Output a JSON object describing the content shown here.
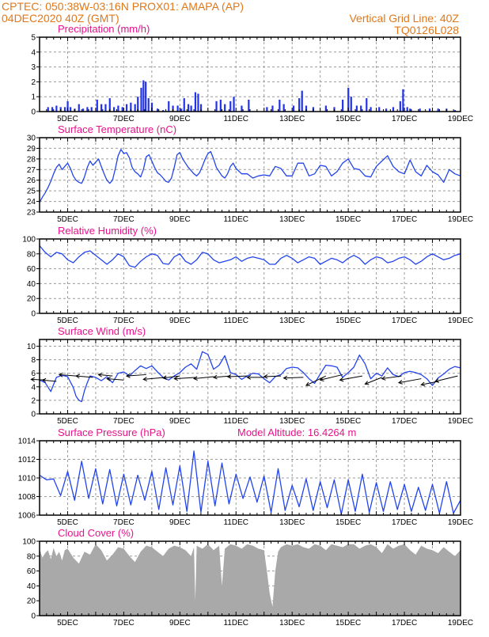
{
  "header": {
    "line1": "CPTEC:   050:38W-03:16N   PROX01: AMAPA (AP)",
    "line2": "04DEC2020 40Z (GMT)",
    "grid_note": "Vertical Grid Line: 40Z",
    "model_code": "TQ0126L028"
  },
  "colors": {
    "header_text": "#e0781a",
    "panel_title": "#e8128c",
    "series_line": "#2244ee",
    "bars": "#2233ee",
    "cloud_fill": "#a9a9a9",
    "grid": "#9a9a9a",
    "frame": "#000000",
    "wind_arrow": "#000000"
  },
  "x_axis": {
    "day_start": 4,
    "day_end": 19,
    "tick_days": [
      5,
      7,
      9,
      11,
      13,
      15,
      17,
      19
    ],
    "tick_labels": [
      "5DEC",
      "7DEC",
      "9DEC",
      "11DEC",
      "13DEC",
      "15DEC",
      "17DEC",
      "19DEC"
    ]
  },
  "chart_data": [
    {
      "id": "precip",
      "type": "bar",
      "title": "Precipitation (mm/h)",
      "ylim": [
        0,
        5
      ],
      "yticks": [
        0,
        1,
        2,
        3,
        4,
        5
      ],
      "grid": true,
      "events": [
        [
          4.3,
          0.3
        ],
        [
          4.45,
          0.3
        ],
        [
          4.6,
          0.4
        ],
        [
          4.75,
          0.3
        ],
        [
          4.9,
          0.3
        ],
        [
          5.0,
          0.7
        ],
        [
          5.1,
          0.3
        ],
        [
          5.25,
          0.2
        ],
        [
          5.4,
          0.5
        ],
        [
          5.55,
          0.2
        ],
        [
          5.7,
          0.3
        ],
        [
          5.85,
          0.3
        ],
        [
          6.05,
          0.8
        ],
        [
          6.2,
          0.5
        ],
        [
          6.35,
          0.5
        ],
        [
          6.5,
          0.9
        ],
        [
          6.65,
          0.3
        ],
        [
          6.8,
          0.4
        ],
        [
          6.95,
          0.3
        ],
        [
          7.1,
          0.5
        ],
        [
          7.25,
          0.6
        ],
        [
          7.4,
          0.5
        ],
        [
          7.5,
          1.0
        ],
        [
          7.62,
          1.6
        ],
        [
          7.7,
          2.1
        ],
        [
          7.78,
          2.0
        ],
        [
          7.88,
          0.9
        ],
        [
          8.0,
          0.6
        ],
        [
          8.2,
          0.2
        ],
        [
          8.4,
          0.1
        ],
        [
          8.6,
          0.7
        ],
        [
          8.75,
          0.4
        ],
        [
          8.92,
          0.4
        ],
        [
          9.05,
          0.2
        ],
        [
          9.15,
          0.9
        ],
        [
          9.3,
          0.5
        ],
        [
          9.4,
          0.4
        ],
        [
          9.55,
          1.3
        ],
        [
          9.65,
          1.2
        ],
        [
          9.75,
          0.5
        ],
        [
          10.3,
          0.7
        ],
        [
          10.45,
          0.8
        ],
        [
          10.6,
          0.5
        ],
        [
          10.8,
          0.7
        ],
        [
          10.92,
          1.0
        ],
        [
          11.2,
          0.4
        ],
        [
          11.45,
          0.8
        ],
        [
          12.1,
          0.3
        ],
        [
          12.3,
          0.4
        ],
        [
          12.55,
          0.8
        ],
        [
          12.7,
          0.5
        ],
        [
          13.05,
          0.4
        ],
        [
          13.25,
          0.9
        ],
        [
          13.35,
          1.4
        ],
        [
          13.5,
          0.4
        ],
        [
          13.75,
          0.3
        ],
        [
          14.2,
          0.4
        ],
        [
          14.5,
          0.3
        ],
        [
          14.8,
          0.8
        ],
        [
          15.0,
          1.6
        ],
        [
          15.1,
          1.0
        ],
        [
          15.3,
          0.4
        ],
        [
          15.45,
          0.4
        ],
        [
          15.65,
          0.9
        ],
        [
          15.8,
          0.3
        ],
        [
          16.1,
          0.3
        ],
        [
          16.35,
          0.2
        ],
        [
          16.6,
          0.3
        ],
        [
          16.85,
          0.7
        ],
        [
          16.95,
          1.5
        ],
        [
          17.1,
          0.3
        ],
        [
          17.2,
          0.2
        ],
        [
          17.55,
          0.2
        ],
        [
          17.9,
          0.2
        ],
        [
          18.2,
          0.2
        ],
        [
          18.5,
          0.2
        ],
        [
          18.8,
          0.1
        ]
      ]
    },
    {
      "id": "temp",
      "type": "line",
      "title": "Surface Temperature (nC)",
      "ylim": [
        23,
        30
      ],
      "yticks": [
        23,
        24,
        25,
        26,
        27,
        28,
        29,
        30
      ],
      "grid": true,
      "x": [
        4.0,
        4.1,
        4.2,
        4.3,
        4.4,
        4.5,
        4.6,
        4.7,
        4.8,
        4.9,
        5.0,
        5.1,
        5.2,
        5.3,
        5.4,
        5.5,
        5.6,
        5.7,
        5.8,
        5.9,
        6.0,
        6.1,
        6.2,
        6.3,
        6.4,
        6.5,
        6.6,
        6.7,
        6.8,
        6.9,
        7.0,
        7.1,
        7.2,
        7.3,
        7.4,
        7.5,
        7.6,
        7.7,
        7.8,
        7.9,
        8.0,
        8.1,
        8.2,
        8.3,
        8.4,
        8.5,
        8.6,
        8.7,
        8.8,
        8.9,
        9.0,
        9.1,
        9.2,
        9.3,
        9.4,
        9.5,
        9.6,
        9.7,
        9.8,
        9.9,
        10.0,
        10.1,
        10.2,
        10.3,
        10.4,
        10.5,
        10.6,
        10.7,
        10.8,
        10.9,
        11.0,
        11.2,
        11.4,
        11.6,
        11.8,
        12.0,
        12.2,
        12.4,
        12.6,
        12.8,
        13.0,
        13.2,
        13.4,
        13.6,
        13.8,
        14.0,
        14.2,
        14.4,
        14.6,
        14.8,
        15.0,
        15.2,
        15.4,
        15.6,
        15.8,
        16.0,
        16.2,
        16.4,
        16.6,
        16.8,
        17.0,
        17.2,
        17.4,
        17.6,
        17.8,
        18.0,
        18.2,
        18.4,
        18.6,
        18.8,
        19.0
      ],
      "values": [
        23.9,
        24.4,
        24.8,
        25.3,
        25.9,
        26.6,
        27.2,
        27.5,
        27.0,
        27.3,
        27.6,
        27.1,
        26.4,
        26.0,
        25.8,
        25.7,
        26.3,
        27.2,
        27.8,
        27.4,
        27.7,
        28.0,
        27.3,
        26.6,
        26.0,
        25.7,
        26.0,
        27.1,
        28.3,
        28.9,
        28.5,
        28.6,
        28.1,
        27.2,
        26.8,
        26.6,
        26.3,
        27.0,
        28.2,
        28.4,
        27.8,
        27.2,
        26.7,
        26.5,
        26.2,
        25.9,
        25.8,
        26.2,
        27.2,
        28.4,
        28.6,
        28.0,
        27.6,
        27.2,
        26.9,
        26.6,
        26.4,
        26.7,
        27.3,
        28.0,
        28.5,
        28.7,
        28.0,
        27.2,
        26.8,
        26.4,
        26.2,
        26.6,
        27.3,
        27.6,
        27.1,
        26.6,
        26.6,
        26.2,
        26.4,
        26.5,
        26.4,
        27.3,
        27.1,
        26.4,
        26.4,
        27.6,
        27.6,
        26.4,
        26.6,
        27.4,
        27.3,
        26.4,
        26.8,
        27.6,
        28.0,
        27.1,
        27.0,
        26.4,
        26.3,
        27.3,
        27.8,
        28.3,
        27.3,
        26.8,
        26.6,
        27.9,
        26.8,
        26.4,
        27.4,
        26.8,
        26.5,
        25.8,
        27.0,
        26.6,
        26.4
      ]
    },
    {
      "id": "rh",
      "type": "line",
      "title": "Relative Humidity (%)",
      "ylim": [
        0,
        100
      ],
      "yticks": [
        0,
        20,
        40,
        60,
        80,
        100
      ],
      "grid": true,
      "x": [
        4.0,
        4.2,
        4.4,
        4.6,
        4.8,
        5.0,
        5.2,
        5.4,
        5.6,
        5.8,
        6.0,
        6.2,
        6.4,
        6.6,
        6.8,
        7.0,
        7.2,
        7.4,
        7.6,
        7.8,
        8.0,
        8.2,
        8.4,
        8.6,
        8.8,
        9.0,
        9.2,
        9.4,
        9.6,
        9.8,
        10.0,
        10.2,
        10.4,
        10.6,
        10.8,
        11.0,
        11.2,
        11.4,
        11.6,
        11.8,
        12.0,
        12.2,
        12.4,
        12.6,
        12.8,
        13.0,
        13.2,
        13.4,
        13.6,
        13.8,
        14.0,
        14.2,
        14.4,
        14.6,
        14.8,
        15.0,
        15.2,
        15.4,
        15.6,
        15.8,
        16.0,
        16.2,
        16.4,
        16.6,
        16.8,
        17.0,
        17.2,
        17.4,
        17.6,
        17.8,
        18.0,
        18.2,
        18.4,
        18.6,
        18.8,
        19.0
      ],
      "values": [
        91,
        82,
        76,
        82,
        80,
        72,
        68,
        76,
        82,
        84,
        78,
        72,
        66,
        72,
        80,
        76,
        64,
        62,
        70,
        76,
        80,
        78,
        67,
        66,
        76,
        80,
        70,
        66,
        72,
        82,
        80,
        72,
        68,
        70,
        72,
        76,
        70,
        74,
        76,
        74,
        72,
        66,
        66,
        74,
        78,
        74,
        68,
        72,
        76,
        74,
        66,
        70,
        74,
        72,
        68,
        74,
        78,
        74,
        66,
        72,
        76,
        74,
        68,
        70,
        74,
        76,
        72,
        66,
        70,
        76,
        80,
        76,
        72,
        74,
        78,
        80
      ]
    },
    {
      "id": "wind",
      "type": "line",
      "title": "Surface Wind (m/s)",
      "ylim": [
        0,
        11
      ],
      "yticks": [
        0,
        2,
        4,
        6,
        8,
        10
      ],
      "grid": true,
      "x": [
        4.0,
        4.2,
        4.4,
        4.6,
        4.8,
        5.0,
        5.2,
        5.3,
        5.4,
        5.5,
        5.6,
        5.7,
        5.8,
        6.0,
        6.2,
        6.4,
        6.6,
        6.8,
        7.0,
        7.2,
        7.4,
        7.6,
        7.8,
        8.0,
        8.2,
        8.4,
        8.6,
        8.8,
        9.0,
        9.2,
        9.4,
        9.6,
        9.8,
        10.0,
        10.2,
        10.4,
        10.6,
        10.8,
        11.0,
        11.2,
        11.4,
        11.6,
        11.8,
        12.0,
        12.2,
        12.4,
        12.6,
        12.8,
        13.0,
        13.2,
        13.4,
        13.6,
        13.8,
        14.0,
        14.2,
        14.4,
        14.6,
        14.8,
        15.0,
        15.2,
        15.4,
        15.6,
        15.8,
        16.0,
        16.2,
        16.4,
        16.6,
        16.8,
        17.0,
        17.2,
        17.4,
        17.6,
        17.8,
        18.0,
        18.2,
        18.4,
        18.6,
        18.8,
        19.0
      ],
      "values": [
        5.0,
        4.6,
        3.3,
        5.4,
        5.7,
        5.5,
        3.9,
        2.6,
        2.0,
        1.8,
        3.4,
        4.6,
        5.6,
        5.4,
        4.9,
        5.5,
        4.6,
        6.0,
        6.2,
        5.6,
        6.4,
        7.1,
        6.7,
        7.1,
        6.2,
        5.4,
        5.0,
        5.6,
        6.1,
        6.9,
        7.4,
        6.6,
        9.2,
        8.8,
        6.6,
        7.2,
        8.6,
        6.1,
        5.8,
        5.1,
        5.6,
        6.0,
        5.9,
        5.2,
        4.6,
        5.5,
        5.8,
        6.7,
        6.9,
        6.8,
        6.1,
        5.2,
        4.5,
        5.9,
        7.2,
        7.1,
        6.9,
        5.4,
        6.1,
        6.9,
        8.7,
        7.4,
        5.2,
        6.0,
        5.6,
        6.8,
        5.8,
        5.5,
        6.1,
        6.3,
        6.1,
        5.8,
        5.2,
        4.2,
        5.3,
        5.9,
        6.6,
        7.0,
        6.8
      ],
      "arrows": [
        [
          4.2,
          5.0,
          -0.5,
          0.1
        ],
        [
          4.6,
          4.8,
          -0.5,
          0.2
        ],
        [
          5.3,
          5.6,
          -0.6,
          0.2
        ],
        [
          5.9,
          5.4,
          -0.6,
          0.2
        ],
        [
          6.6,
          5.6,
          -0.5,
          0.2
        ],
        [
          7.0,
          5.0,
          -0.6,
          0.2
        ],
        [
          7.8,
          5.8,
          -0.7,
          -0.2
        ],
        [
          8.5,
          5.4,
          -0.8,
          -0.3
        ],
        [
          9.0,
          5.6,
          -0.6,
          -0.3
        ],
        [
          9.6,
          5.4,
          -0.8,
          -0.2
        ],
        [
          10.2,
          5.5,
          -0.7,
          -0.3
        ],
        [
          10.8,
          5.6,
          -0.6,
          -0.2
        ],
        [
          11.4,
          5.6,
          -0.7,
          -0.1
        ],
        [
          12.0,
          5.4,
          -0.6,
          0.0
        ],
        [
          12.6,
          5.6,
          -0.6,
          -0.1
        ],
        [
          13.4,
          5.4,
          -0.7,
          -0.1
        ],
        [
          14.2,
          5.6,
          -0.7,
          -1.4
        ],
        [
          14.8,
          5.8,
          -0.8,
          -0.8
        ],
        [
          15.5,
          5.6,
          -0.8,
          -0.6
        ],
        [
          16.2,
          5.4,
          -0.6,
          -1.0
        ],
        [
          16.9,
          5.6,
          -0.7,
          -0.4
        ],
        [
          17.6,
          5.2,
          -0.8,
          -0.6
        ],
        [
          18.2,
          4.8,
          -0.6,
          -0.5
        ],
        [
          18.9,
          5.6,
          -0.8,
          -0.8
        ]
      ]
    },
    {
      "id": "pressure",
      "type": "line",
      "title": "Surface Pressure (hPa)",
      "annotation": "Model Altitude: 16.4264 m",
      "ylim": [
        1006,
        1014
      ],
      "yticks": [
        1006,
        1008,
        1010,
        1012,
        1014
      ],
      "grid": true,
      "x": [
        4.0,
        4.25,
        4.5,
        4.75,
        5.0,
        5.25,
        5.5,
        5.75,
        6.0,
        6.25,
        6.5,
        6.75,
        7.0,
        7.25,
        7.5,
        7.75,
        8.0,
        8.25,
        8.5,
        8.75,
        9.0,
        9.25,
        9.5,
        9.75,
        10.0,
        10.25,
        10.5,
        10.75,
        11.0,
        11.25,
        11.5,
        11.75,
        12.0,
        12.25,
        12.5,
        12.75,
        13.0,
        13.25,
        13.5,
        13.75,
        14.0,
        14.25,
        14.5,
        14.75,
        15.0,
        15.25,
        15.5,
        15.75,
        16.0,
        16.25,
        16.5,
        16.75,
        17.0,
        17.25,
        17.5,
        17.75,
        18.0,
        18.25,
        18.5,
        18.75,
        19.0
      ],
      "values": [
        1010.3,
        1009.8,
        1009.9,
        1008.1,
        1010.7,
        1007.6,
        1011.8,
        1007.8,
        1011.0,
        1007.2,
        1010.9,
        1007.0,
        1010.4,
        1007.1,
        1010.3,
        1007.6,
        1010.7,
        1006.6,
        1011.1,
        1007.1,
        1011.3,
        1006.4,
        1012.9,
        1006.3,
        1011.8,
        1007.0,
        1011.6,
        1007.2,
        1010.4,
        1007.8,
        1010.1,
        1007.4,
        1010.2,
        1006.3,
        1011.0,
        1006.5,
        1009.2,
        1006.9,
        1009.9,
        1006.5,
        1009.6,
        1006.8,
        1009.8,
        1006.1,
        1009.8,
        1006.4,
        1010.4,
        1006.3,
        1009.5,
        1006.4,
        1009.6,
        1006.6,
        1009.3,
        1006.4,
        1009.0,
        1006.5,
        1009.3,
        1006.2,
        1009.6,
        1006.2,
        1007.6
      ]
    },
    {
      "id": "cloud",
      "type": "area",
      "title": "Cloud Cover (%)",
      "ylim": [
        0,
        100
      ],
      "yticks": [
        0,
        20,
        40,
        60,
        80,
        100
      ],
      "grid": true,
      "x": [
        4.0,
        4.1,
        4.2,
        4.3,
        4.4,
        4.5,
        4.6,
        4.7,
        4.8,
        4.9,
        5.0,
        5.2,
        5.4,
        5.6,
        5.8,
        6.0,
        6.2,
        6.4,
        6.6,
        6.8,
        7.0,
        7.2,
        7.4,
        7.6,
        7.8,
        8.0,
        8.2,
        8.4,
        8.6,
        8.8,
        9.0,
        9.2,
        9.4,
        9.5,
        9.55,
        9.6,
        9.8,
        10.0,
        10.2,
        10.4,
        10.5,
        10.6,
        10.8,
        11.0,
        11.2,
        11.4,
        11.6,
        11.8,
        12.0,
        12.1,
        12.2,
        12.3,
        12.4,
        12.5,
        12.6,
        12.8,
        13.0,
        13.2,
        13.4,
        13.6,
        13.8,
        14.0,
        14.2,
        14.4,
        14.6,
        14.8,
        15.0,
        15.2,
        15.4,
        15.6,
        15.8,
        16.0,
        16.2,
        16.4,
        16.6,
        16.8,
        17.0,
        17.2,
        17.4,
        17.6,
        17.8,
        18.0,
        18.2,
        18.4,
        18.6,
        18.8,
        19.0
      ],
      "values": [
        90,
        78,
        84,
        88,
        76,
        91,
        80,
        86,
        74,
        88,
        90,
        78,
        70,
        86,
        82,
        96,
        88,
        74,
        82,
        92,
        90,
        80,
        72,
        86,
        94,
        92,
        86,
        80,
        90,
        94,
        92,
        88,
        80,
        92,
        20,
        94,
        90,
        96,
        88,
        94,
        40,
        90,
        96,
        94,
        90,
        96,
        94,
        90,
        88,
        60,
        30,
        12,
        60,
        86,
        92,
        96,
        94,
        96,
        92,
        90,
        96,
        94,
        88,
        96,
        94,
        92,
        96,
        96,
        90,
        94,
        96,
        92,
        84,
        96,
        90,
        94,
        96,
        88,
        82,
        94,
        90,
        88,
        84,
        92,
        86,
        80,
        88
      ]
    }
  ]
}
